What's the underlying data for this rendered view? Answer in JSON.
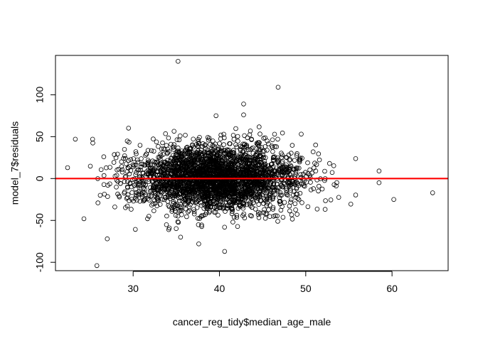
{
  "chart_data": {
    "type": "scatter",
    "xlabel": "cancer_reg_tidy$median_age_male",
    "ylabel": "model_7$residuals",
    "xlim": [
      21,
      66.5
    ],
    "ylim": [
      -110,
      147
    ],
    "xticks": [
      30,
      40,
      50,
      60
    ],
    "yticks": [
      -100,
      -50,
      0,
      50,
      100
    ],
    "x_tick_labels": [
      "30",
      "40",
      "50",
      "60"
    ],
    "y_tick_labels": [
      "-100",
      "-50",
      "0",
      "50",
      "100"
    ],
    "reference_line": {
      "y": 0,
      "color": "#ff0000"
    },
    "point_style": "open-circle",
    "point_color": "#000000",
    "grid": false,
    "legend": "none",
    "approx_point_count": 3000,
    "x_distribution": {
      "center": 39.6,
      "spread": 4.9,
      "min": 22.4,
      "max": 64.7
    },
    "y_distribution": {
      "center": 0,
      "spread": 19.5
    },
    "notable_points": [
      {
        "x": 35.2,
        "y": 140
      },
      {
        "x": 46.8,
        "y": 109
      },
      {
        "x": 42.8,
        "y": 89
      },
      {
        "x": 42.8,
        "y": 76
      },
      {
        "x": 39.6,
        "y": 75
      },
      {
        "x": 23.3,
        "y": 47
      },
      {
        "x": 25.3,
        "y": 47
      },
      {
        "x": 26.6,
        "y": 26
      },
      {
        "x": 22.4,
        "y": 13
      },
      {
        "x": 58.5,
        "y": 9
      },
      {
        "x": 58.5,
        "y": -5
      },
      {
        "x": 64.7,
        "y": -17
      },
      {
        "x": 60.2,
        "y": -25
      },
      {
        "x": 24.3,
        "y": -48
      },
      {
        "x": 27.0,
        "y": -72
      },
      {
        "x": 25.8,
        "y": -104
      },
      {
        "x": 40.6,
        "y": -87
      },
      {
        "x": 35.5,
        "y": -70
      },
      {
        "x": 37.6,
        "y": -78
      },
      {
        "x": 34.2,
        "y": -59
      }
    ]
  }
}
